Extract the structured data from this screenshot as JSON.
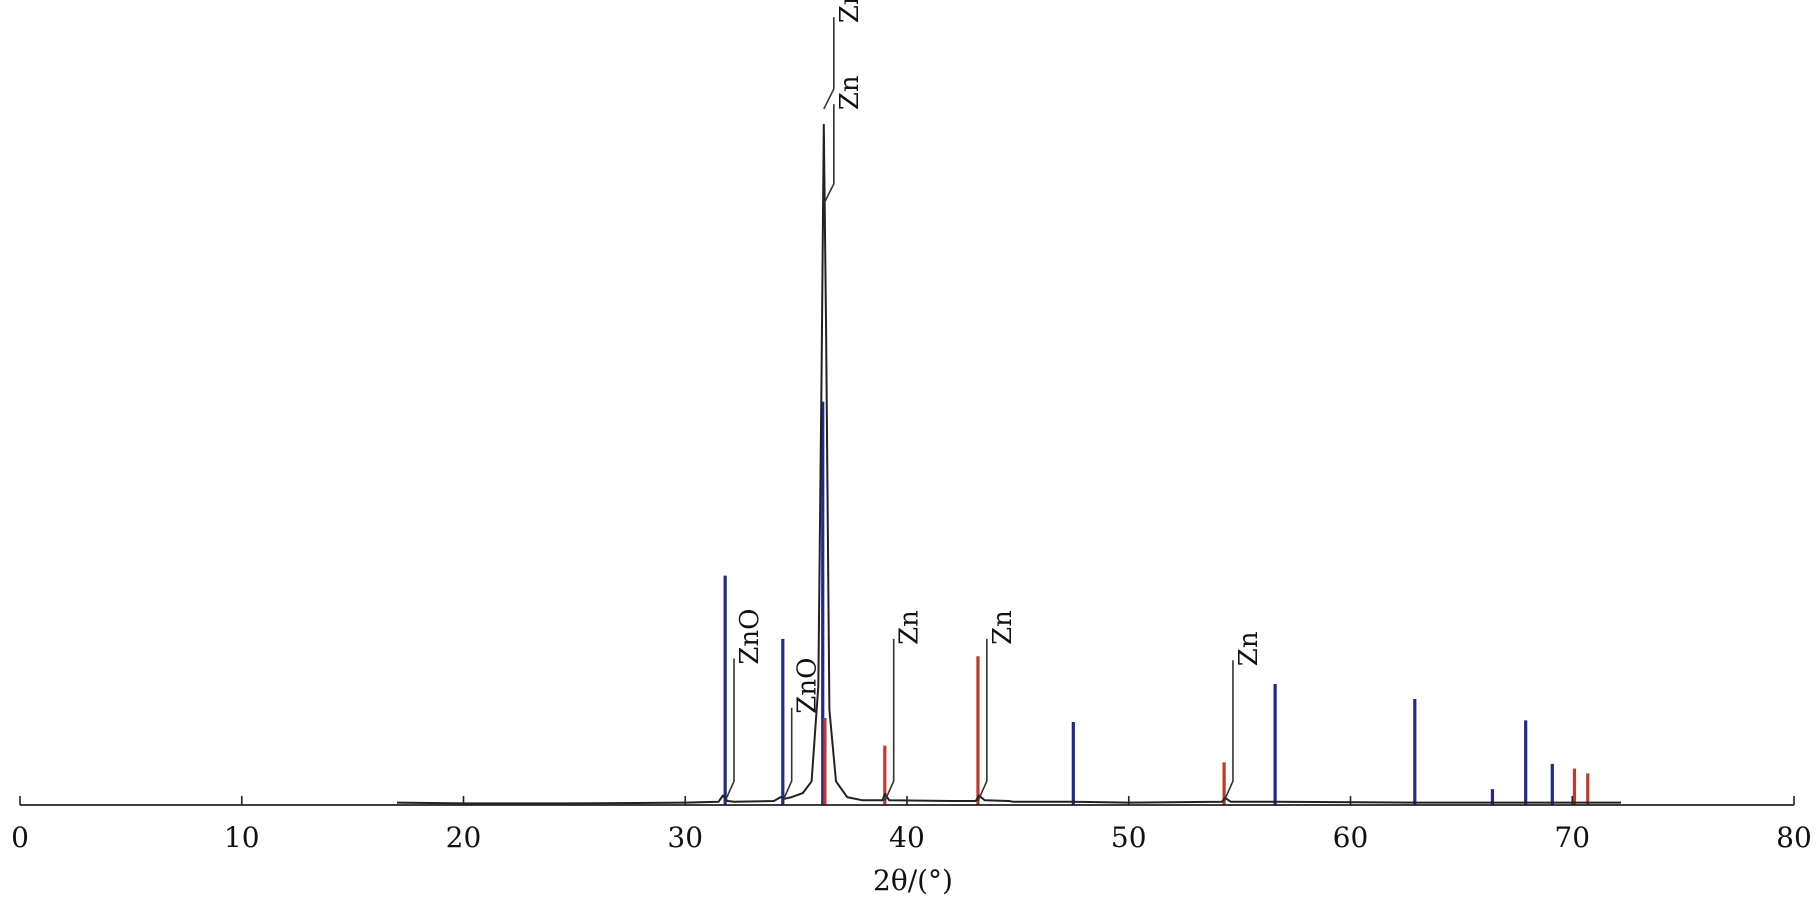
{
  "chart_data": {
    "type": "line",
    "title": "",
    "xlabel": "2θ/(°)",
    "ylabel": "",
    "xlim": [
      0,
      80
    ],
    "ylim": [
      0,
      100
    ],
    "x_ticks": [
      0,
      10,
      20,
      30,
      40,
      50,
      60,
      70,
      80
    ],
    "x_tick_labels": [
      "0",
      "10",
      "20",
      "30",
      "40",
      "50",
      "60",
      "70",
      "80"
    ],
    "grid": false,
    "colors": {
      "pattern": "#222222",
      "zno_ref": "#1f2a8a",
      "zn_ref": "#c0392b",
      "annotation": "#333333"
    },
    "series": [
      {
        "role": "measured",
        "x": [
          17,
          20,
          25,
          30,
          31.5,
          31.7,
          31.9,
          32.2,
          34.0,
          34.3,
          34.5,
          34.8,
          35.3,
          35.7,
          36.0,
          36.15,
          36.25,
          36.35,
          36.5,
          36.8,
          37.3,
          38.0,
          38.9,
          39.0,
          39.2,
          42.0,
          43.1,
          43.25,
          43.5,
          44.6,
          44.8,
          47.5,
          50,
          54.2,
          54.35,
          54.6,
          56.6,
          62.9,
          66.4,
          68.0,
          69.2,
          70.1,
          70.8,
          72.2
        ],
        "y": [
          0.3,
          0.2,
          0.2,
          0.3,
          0.4,
          1.2,
          0.5,
          0.4,
          0.5,
          1.0,
          0.8,
          1.0,
          1.5,
          3.0,
          15,
          55,
          86,
          60,
          12,
          3,
          1.0,
          0.6,
          0.6,
          1.4,
          0.6,
          0.5,
          0.5,
          1.2,
          0.6,
          0.5,
          0.4,
          0.4,
          0.3,
          0.4,
          0.9,
          0.4,
          0.4,
          0.3,
          0.3,
          0.3,
          0.3,
          0.3,
          0.3,
          0.3
        ]
      }
    ],
    "reference_lines": {
      "ZnO": [
        {
          "x": 31.8,
          "y": 29
        },
        {
          "x": 34.4,
          "y": 21
        },
        {
          "x": 36.2,
          "y": 51
        },
        {
          "x": 47.5,
          "y": 10.5
        },
        {
          "x": 56.6,
          "y": 15.3
        },
        {
          "x": 62.9,
          "y": 13.4
        },
        {
          "x": 66.4,
          "y": 2.0
        },
        {
          "x": 67.9,
          "y": 10.7
        },
        {
          "x": 69.1,
          "y": 5.2
        }
      ],
      "Zn": [
        {
          "x": 36.3,
          "y": 11
        },
        {
          "x": 39.0,
          "y": 7.5
        },
        {
          "x": 43.2,
          "y": 18.8
        },
        {
          "x": 54.3,
          "y": 5.4
        },
        {
          "x": 70.1,
          "y": 4.6
        },
        {
          "x": 70.7,
          "y": 4.0
        }
      ]
    },
    "annotations": [
      {
        "text": "ZnO",
        "x": 31.8,
        "y": 0.5,
        "text_x": 32.2,
        "text_y": 18.5
      },
      {
        "text": "ZnO",
        "x": 34.4,
        "y": 0.5,
        "text_x": 34.8,
        "text_y": 12.3
      },
      {
        "text": "ZnO",
        "x": 36.25,
        "y": 88,
        "text_x": 36.7,
        "text_y": 99.6
      },
      {
        "text": "Zn",
        "x": 36.25,
        "y": 76,
        "text_x": 36.7,
        "text_y": 88.6
      },
      {
        "text": "Zn",
        "x": 39.0,
        "y": 0.5,
        "text_x": 39.4,
        "text_y": 21
      },
      {
        "text": "Zn",
        "x": 43.2,
        "y": 0.5,
        "text_x": 43.6,
        "text_y": 21
      },
      {
        "text": "Zn",
        "x": 54.3,
        "y": 0.5,
        "text_x": 54.7,
        "text_y": 18.3
      }
    ]
  }
}
